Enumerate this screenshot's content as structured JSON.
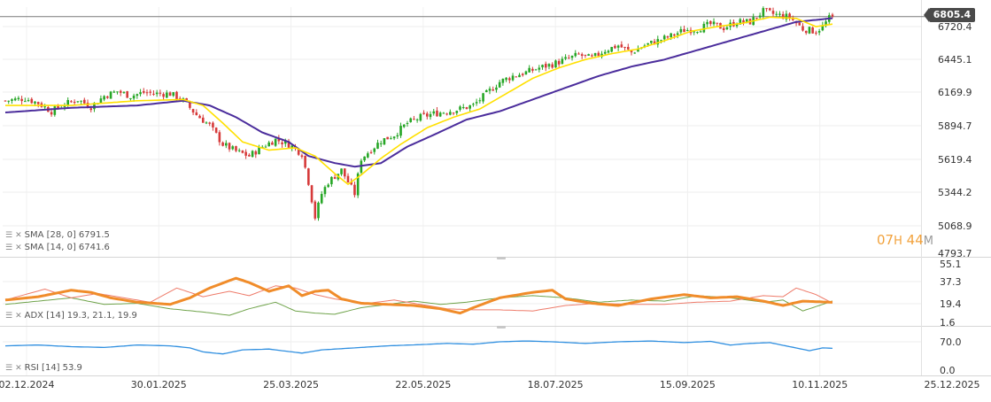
{
  "current_price": "6805.4",
  "timer": {
    "hours": "07",
    "h_unit": "H",
    "minutes": "44",
    "m_unit": "M"
  },
  "indicators": {
    "sma28": {
      "label": "SMA [28, 0]",
      "value": "6791.5"
    },
    "sma14": {
      "label": "SMA [14, 0]",
      "value": "6741.6"
    },
    "adx": {
      "label": "ADX [14]",
      "v1": "19.3,",
      "v2": "21.1,",
      "v3": "19.9"
    },
    "rsi": {
      "label": "RSI [14]",
      "value": "53.9"
    }
  },
  "chart_data": [
    {
      "type": "candlestick",
      "name": "price",
      "x_dates": [
        "02.12.2024",
        "30.01.2025",
        "25.03.2025",
        "22.05.2025",
        "18.07.2025",
        "15.09.2025",
        "10.11.2025",
        "25.12.2025"
      ],
      "y_ticks": [
        "6720.4",
        "6445.1",
        "6169.9",
        "5894.7",
        "5619.4",
        "5344.2",
        "5068.9",
        "4793.7"
      ],
      "ylim": [
        4793.7,
        6850
      ],
      "current": 6805.4,
      "close_path": [
        [
          0,
          6090
        ],
        [
          6,
          6110
        ],
        [
          10,
          6070
        ],
        [
          14,
          6000
        ],
        [
          18,
          6060
        ],
        [
          22,
          6100
        ],
        [
          26,
          6040
        ],
        [
          30,
          6130
        ],
        [
          34,
          6170
        ],
        [
          38,
          6130
        ],
        [
          42,
          6160
        ],
        [
          46,
          6150
        ],
        [
          50,
          6150
        ],
        [
          54,
          6090
        ],
        [
          58,
          5970
        ],
        [
          62,
          5880
        ],
        [
          66,
          5720
        ],
        [
          70,
          5660
        ],
        [
          74,
          5620
        ],
        [
          78,
          5700
        ],
        [
          82,
          5760
        ],
        [
          86,
          5720
        ],
        [
          90,
          5640
        ],
        [
          92,
          5400
        ],
        [
          94,
          5100
        ],
        [
          96,
          5300
        ],
        [
          98,
          5400
        ],
        [
          100,
          5450
        ],
        [
          102,
          5500
        ],
        [
          104,
          5400
        ],
        [
          106,
          5300
        ],
        [
          108,
          5600
        ],
        [
          110,
          5650
        ],
        [
          112,
          5700
        ],
        [
          114,
          5750
        ],
        [
          118,
          5800
        ],
        [
          122,
          5900
        ],
        [
          126,
          5950
        ],
        [
          130,
          5980
        ],
        [
          134,
          6000
        ],
        [
          138,
          6020
        ],
        [
          142,
          6050
        ],
        [
          146,
          6150
        ],
        [
          150,
          6250
        ],
        [
          154,
          6300
        ],
        [
          158,
          6330
        ],
        [
          162,
          6370
        ],
        [
          166,
          6400
        ],
        [
          170,
          6440
        ],
        [
          174,
          6480
        ],
        [
          178,
          6450
        ],
        [
          182,
          6520
        ],
        [
          186,
          6560
        ],
        [
          190,
          6500
        ],
        [
          194,
          6560
        ],
        [
          198,
          6600
        ],
        [
          202,
          6640
        ],
        [
          206,
          6690
        ],
        [
          210,
          6700
        ],
        [
          214,
          6740
        ],
        [
          218,
          6710
        ],
        [
          222,
          6760
        ],
        [
          226,
          6760
        ],
        [
          230,
          6850
        ],
        [
          234,
          6820
        ],
        [
          238,
          6800
        ],
        [
          242,
          6700
        ],
        [
          246,
          6680
        ],
        [
          248,
          6720
        ],
        [
          250,
          6790
        ],
        [
          251,
          6805.4
        ]
      ],
      "sma14_path": [
        [
          0,
          6050
        ],
        [
          20,
          6050
        ],
        [
          40,
          6090
        ],
        [
          54,
          6100
        ],
        [
          60,
          6050
        ],
        [
          66,
          5900
        ],
        [
          72,
          5740
        ],
        [
          80,
          5670
        ],
        [
          88,
          5690
        ],
        [
          94,
          5620
        ],
        [
          100,
          5470
        ],
        [
          104,
          5380
        ],
        [
          108,
          5460
        ],
        [
          114,
          5600
        ],
        [
          120,
          5720
        ],
        [
          128,
          5860
        ],
        [
          136,
          5950
        ],
        [
          144,
          6020
        ],
        [
          152,
          6150
        ],
        [
          160,
          6280
        ],
        [
          168,
          6370
        ],
        [
          176,
          6440
        ],
        [
          184,
          6490
        ],
        [
          192,
          6530
        ],
        [
          200,
          6600
        ],
        [
          208,
          6680
        ],
        [
          216,
          6720
        ],
        [
          224,
          6750
        ],
        [
          232,
          6800
        ],
        [
          240,
          6790
        ],
        [
          246,
          6720
        ],
        [
          251,
          6741.6
        ]
      ],
      "sma28_path": [
        [
          0,
          5990
        ],
        [
          20,
          6030
        ],
        [
          40,
          6050
        ],
        [
          54,
          6090
        ],
        [
          62,
          6050
        ],
        [
          70,
          5950
        ],
        [
          78,
          5820
        ],
        [
          86,
          5740
        ],
        [
          92,
          5620
        ],
        [
          100,
          5560
        ],
        [
          106,
          5530
        ],
        [
          114,
          5560
        ],
        [
          122,
          5700
        ],
        [
          130,
          5800
        ],
        [
          140,
          5930
        ],
        [
          150,
          6000
        ],
        [
          160,
          6100
        ],
        [
          170,
          6200
        ],
        [
          180,
          6300
        ],
        [
          190,
          6380
        ],
        [
          200,
          6440
        ],
        [
          210,
          6520
        ],
        [
          220,
          6600
        ],
        [
          230,
          6680
        ],
        [
          240,
          6760
        ],
        [
          251,
          6791.5
        ]
      ]
    },
    {
      "type": "line",
      "name": "ADX",
      "y_ticks": [
        "55.1",
        "37.3",
        "19.4",
        "1.6"
      ],
      "ylim": [
        1.6,
        55.1
      ],
      "adx_path": [
        [
          0,
          22
        ],
        [
          10,
          25
        ],
        [
          20,
          31
        ],
        [
          26,
          29
        ],
        [
          32,
          24
        ],
        [
          40,
          20
        ],
        [
          50,
          18
        ],
        [
          56,
          24
        ],
        [
          62,
          33
        ],
        [
          70,
          42
        ],
        [
          74,
          38
        ],
        [
          80,
          30
        ],
        [
          86,
          35
        ],
        [
          90,
          26
        ],
        [
          94,
          30
        ],
        [
          98,
          31
        ],
        [
          102,
          23
        ],
        [
          108,
          19
        ],
        [
          116,
          18
        ],
        [
          124,
          17
        ],
        [
          132,
          14
        ],
        [
          138,
          10
        ],
        [
          142,
          15
        ],
        [
          150,
          24
        ],
        [
          160,
          29
        ],
        [
          166,
          31
        ],
        [
          170,
          23
        ],
        [
          178,
          19
        ],
        [
          186,
          17
        ],
        [
          196,
          23
        ],
        [
          206,
          27
        ],
        [
          214,
          24
        ],
        [
          222,
          25
        ],
        [
          230,
          21
        ],
        [
          236,
          17
        ],
        [
          242,
          21
        ],
        [
          251,
          19.9
        ]
      ],
      "plus_di_path": [
        [
          0,
          18
        ],
        [
          10,
          21
        ],
        [
          20,
          24
        ],
        [
          30,
          18
        ],
        [
          40,
          19
        ],
        [
          50,
          14
        ],
        [
          60,
          11
        ],
        [
          68,
          8
        ],
        [
          74,
          14
        ],
        [
          82,
          20
        ],
        [
          88,
          12
        ],
        [
          94,
          10
        ],
        [
          100,
          9
        ],
        [
          108,
          15
        ],
        [
          116,
          18
        ],
        [
          124,
          21
        ],
        [
          132,
          18
        ],
        [
          140,
          20
        ],
        [
          150,
          24
        ],
        [
          160,
          26
        ],
        [
          170,
          24
        ],
        [
          180,
          20
        ],
        [
          190,
          22
        ],
        [
          200,
          21
        ],
        [
          210,
          26
        ],
        [
          220,
          24
        ],
        [
          230,
          20
        ],
        [
          236,
          22
        ],
        [
          242,
          12
        ],
        [
          248,
          18
        ],
        [
          251,
          21.1
        ]
      ],
      "minus_di_path": [
        [
          0,
          22
        ],
        [
          12,
          32
        ],
        [
          20,
          24
        ],
        [
          28,
          28
        ],
        [
          34,
          25
        ],
        [
          44,
          20
        ],
        [
          52,
          33
        ],
        [
          60,
          25
        ],
        [
          68,
          30
        ],
        [
          74,
          26
        ],
        [
          82,
          35
        ],
        [
          88,
          33
        ],
        [
          94,
          27
        ],
        [
          100,
          23
        ],
        [
          110,
          19
        ],
        [
          118,
          22
        ],
        [
          126,
          18
        ],
        [
          134,
          14
        ],
        [
          142,
          13
        ],
        [
          150,
          13
        ],
        [
          160,
          12
        ],
        [
          170,
          17
        ],
        [
          180,
          19
        ],
        [
          190,
          18
        ],
        [
          200,
          18
        ],
        [
          210,
          20
        ],
        [
          220,
          21
        ],
        [
          230,
          26
        ],
        [
          236,
          25
        ],
        [
          240,
          33
        ],
        [
          246,
          27
        ],
        [
          251,
          19.3
        ]
      ]
    },
    {
      "type": "line",
      "name": "RSI",
      "y_ticks": [
        "70.0",
        "0.0"
      ],
      "ylim": [
        0,
        100
      ],
      "rsi_path": [
        [
          0,
          60
        ],
        [
          10,
          62
        ],
        [
          20,
          58
        ],
        [
          30,
          56
        ],
        [
          40,
          62
        ],
        [
          50,
          60
        ],
        [
          56,
          55
        ],
        [
          60,
          45
        ],
        [
          66,
          40
        ],
        [
          72,
          50
        ],
        [
          80,
          52
        ],
        [
          90,
          42
        ],
        [
          96,
          50
        ],
        [
          106,
          55
        ],
        [
          116,
          60
        ],
        [
          126,
          63
        ],
        [
          134,
          66
        ],
        [
          142,
          64
        ],
        [
          150,
          70
        ],
        [
          158,
          72
        ],
        [
          166,
          70
        ],
        [
          176,
          66
        ],
        [
          186,
          70
        ],
        [
          196,
          72
        ],
        [
          206,
          68
        ],
        [
          214,
          71
        ],
        [
          220,
          62
        ],
        [
          226,
          66
        ],
        [
          232,
          68
        ],
        [
          238,
          58
        ],
        [
          244,
          48
        ],
        [
          248,
          55
        ],
        [
          251,
          53.9
        ]
      ]
    }
  ],
  "colors": {
    "bull": "#26a626",
    "bear": "#d63a3a",
    "sma14": "#ffe000",
    "sma28": "#4b2d9c",
    "adx": "#f08c2a",
    "plus_di": "#6fa34a",
    "minus_di": "#ee7b6a",
    "rsi": "#2f8fe0",
    "timer": "#f2a23c"
  }
}
